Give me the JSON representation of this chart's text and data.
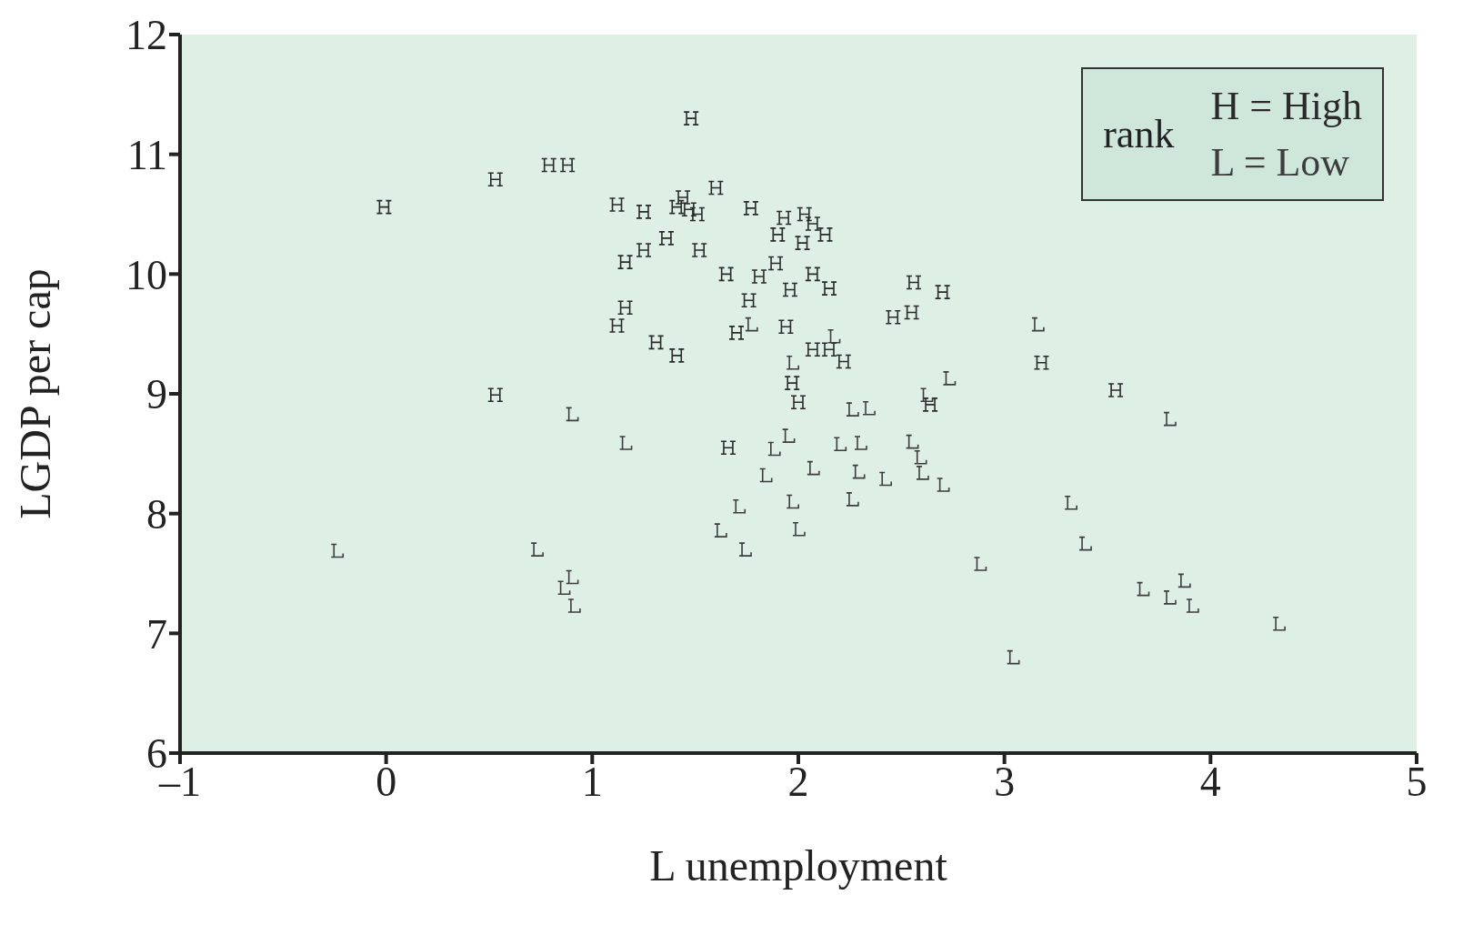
{
  "chart_data": {
    "type": "scatter",
    "xlabel": "L unemployment",
    "ylabel": "LGDP per cap",
    "legend_title": "rank",
    "legend": "top right",
    "grid": false,
    "xlim": [
      -1,
      5
    ],
    "xticks": [
      {
        "value": -1,
        "label": "–1"
      },
      0,
      1,
      2,
      3,
      4,
      5
    ],
    "ylim": [
      6,
      12
    ],
    "yticks": [
      6,
      7,
      8,
      9,
      10,
      11,
      12
    ],
    "series": [
      {
        "name": "H = High",
        "color": "#2a2a2a",
        "x": [
          1.48,
          -0.01,
          0.53,
          0.79,
          0.88,
          1.12,
          1.25,
          1.41,
          1.44,
          1.47,
          1.51,
          1.6,
          1.77,
          1.93,
          2.03,
          2.07,
          1.9,
          2.02,
          2.13,
          1.16,
          1.25,
          1.36,
          1.52,
          1.65,
          1.81,
          1.89,
          2.07,
          1.96,
          2.15,
          1.76,
          1.16,
          1.12,
          1.31,
          1.41,
          1.7,
          1.94,
          2.07,
          2.15,
          2.22,
          2.46,
          2.55,
          2.56,
          2.7,
          0.53,
          1.97,
          2.0,
          2.64,
          3.18,
          3.54,
          1.66
        ],
        "values": [
          11.3,
          10.56,
          10.79,
          10.91,
          10.91,
          10.58,
          10.52,
          10.56,
          10.64,
          10.54,
          10.5,
          10.72,
          10.55,
          10.47,
          10.5,
          10.42,
          10.33,
          10.26,
          10.33,
          10.1,
          10.2,
          10.3,
          10.2,
          10.0,
          9.98,
          10.09,
          10.0,
          9.87,
          9.88,
          9.78,
          9.72,
          9.57,
          9.43,
          9.32,
          9.51,
          9.56,
          9.37,
          9.37,
          9.27,
          9.64,
          9.68,
          9.93,
          9.85,
          8.99,
          9.09,
          8.93,
          8.91,
          9.26,
          9.03,
          8.55
        ]
      },
      {
        "name": "L = Low",
        "color": "#3d3d3d",
        "x": [
          -0.24,
          0.73,
          0.9,
          1.16,
          0.86,
          0.9,
          0.91,
          1.77,
          1.97,
          2.17,
          2.26,
          2.34,
          2.73,
          2.62,
          3.16,
          3.8,
          1.95,
          1.88,
          2.2,
          2.3,
          1.84,
          2.07,
          2.29,
          2.42,
          2.55,
          2.59,
          2.6,
          2.7,
          1.71,
          1.97,
          2.26,
          1.62,
          1.74,
          2.0,
          3.32,
          3.39,
          2.88,
          3.04,
          3.67,
          3.8,
          3.87,
          3.91,
          4.33
        ],
        "values": [
          7.69,
          7.7,
          8.83,
          8.59,
          7.38,
          7.47,
          7.23,
          9.58,
          9.26,
          9.48,
          8.87,
          8.88,
          9.13,
          8.99,
          9.58,
          8.79,
          8.65,
          8.54,
          8.58,
          8.59,
          8.32,
          8.38,
          8.35,
          8.29,
          8.6,
          8.47,
          8.34,
          8.24,
          8.06,
          8.1,
          8.12,
          7.86,
          7.7,
          7.87,
          8.09,
          7.75,
          7.58,
          6.8,
          7.37,
          7.3,
          7.44,
          7.23,
          7.08
        ]
      }
    ]
  }
}
